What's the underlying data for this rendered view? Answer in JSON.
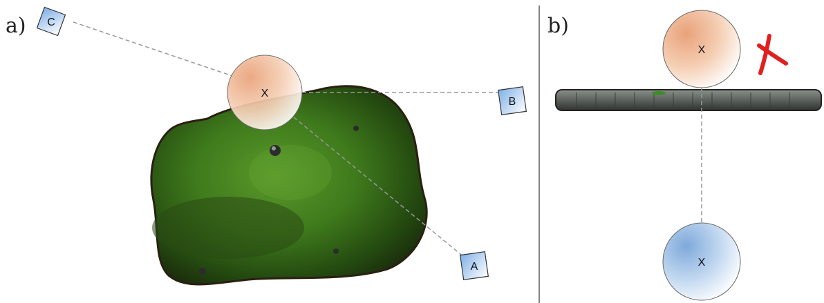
{
  "panels": {
    "a": {
      "label": "a)",
      "markers": {
        "a": "A",
        "b": "B",
        "c": "C"
      },
      "model_label": "X"
    },
    "b": {
      "label": "b)",
      "model_top_label": "X",
      "model_bottom_label": "X",
      "blocked_mark": "invalid"
    }
  },
  "colors": {
    "model_orange": "#f2b896",
    "model_blue": "#8fb6e0",
    "marker_blue": "#9cc4ec",
    "terrain_green": "#3e6e1c",
    "wall_grey": "#5f6460",
    "cross_red": "#e02020",
    "sightline": "#999999",
    "divider": "#333333"
  },
  "icons": {
    "cross": "cross-mark-icon"
  }
}
